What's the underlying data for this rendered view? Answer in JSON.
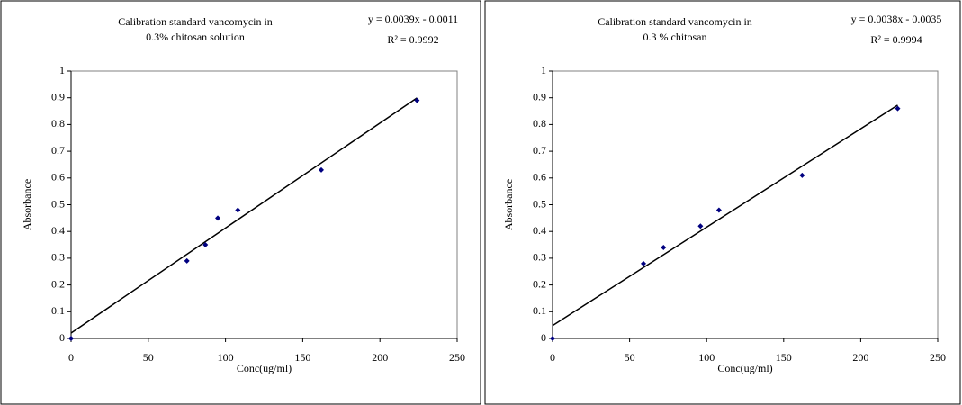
{
  "chart_data": [
    {
      "type": "scatter",
      "title": [
        "Calibration standard vancomycin in",
        "0.3% chitosan solution"
      ],
      "annotations": [
        "y = 0.0039x - 0.0011",
        "R² = 0.9992"
      ],
      "x_label": "Conc(ug/ml)",
      "y_label": "Absorbance",
      "series": [
        {
          "color": "#000080",
          "x": [
            0,
            75,
            87,
            95,
            108,
            162,
            224
          ],
          "values": [
            0,
            0.29,
            0.35,
            0.45,
            0.48,
            0.63,
            0.89
          ]
        }
      ],
      "trendline": true,
      "trendline_color": "#000000",
      "xlim": [
        0,
        250
      ],
      "xticks": [
        0,
        50,
        100,
        150,
        200,
        250
      ],
      "ylim": [
        0,
        1
      ],
      "yticks": [
        0,
        0.1,
        0.2,
        0.3,
        0.4,
        0.5,
        0.6,
        0.7,
        0.8,
        0.9,
        1
      ]
    },
    {
      "type": "scatter",
      "title": [
        "Calibration standard vancomycin in",
        "0.3 % chitosan"
      ],
      "annotations": [
        "y = 0.0038x - 0.0035",
        "R² = 0.9994"
      ],
      "x_label": "Conc(ug/ml)",
      "y_label": "Absorbance",
      "series": [
        {
          "color": "#000080",
          "x": [
            0,
            59,
            72,
            96,
            108,
            162,
            224
          ],
          "values": [
            0,
            0.28,
            0.34,
            0.42,
            0.48,
            0.61,
            0.86
          ]
        }
      ],
      "trendline": true,
      "trendline_color": "#000000",
      "xlim": [
        0,
        250
      ],
      "xticks": [
        0,
        50,
        100,
        150,
        200,
        250
      ],
      "ylim": [
        0,
        1
      ],
      "yticks": [
        0,
        0.1,
        0.2,
        0.3,
        0.4,
        0.5,
        0.6,
        0.7,
        0.8,
        0.9,
        1
      ]
    }
  ]
}
